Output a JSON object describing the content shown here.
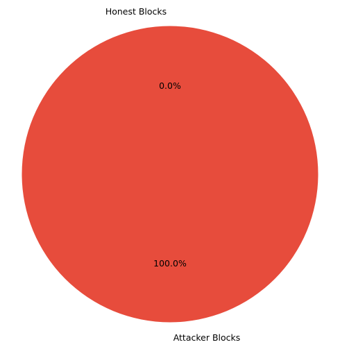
{
  "chart_data": {
    "type": "pie",
    "categories": [
      "Honest Blocks",
      "Attacker Blocks"
    ],
    "values": [
      0.0,
      100.0
    ],
    "percent_labels": [
      "0.0%",
      "100.0%"
    ],
    "colors": [
      "#3498db",
      "#e74c3c"
    ],
    "start_angle_deg": 90,
    "direction": "counterclockwise",
    "legend": "none",
    "title": ""
  }
}
